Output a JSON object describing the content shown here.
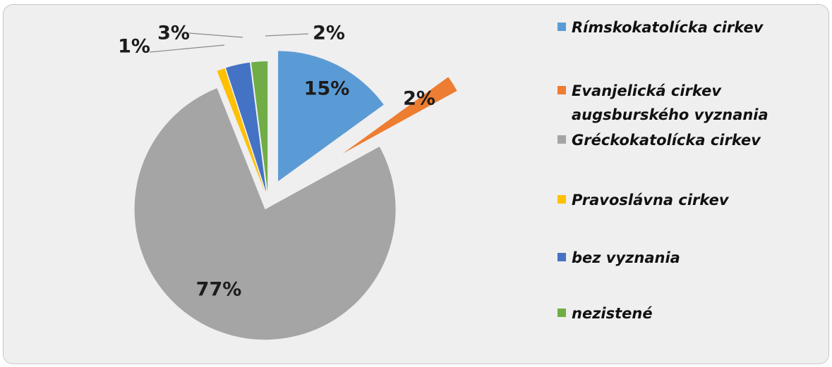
{
  "chart_data": {
    "type": "pie",
    "exploded": true,
    "legend_position": "right",
    "slices": [
      {
        "label": "Rímskokatolícka cirkev",
        "value": 15,
        "value_label": "15%",
        "color": "#5b9bd5"
      },
      {
        "label": "Evanjelická cirkev augsburského vyznania",
        "value": 2,
        "value_label": "2%",
        "color": "#ed7d31"
      },
      {
        "label": "Gréckokatolícka cirkev",
        "value": 77,
        "value_label": "77%",
        "color": "#a5a5a5"
      },
      {
        "label": "Pravoslávna cirkev",
        "value": 1,
        "value_label": "1%",
        "color": "#ffc000"
      },
      {
        "label": "bez vyznania",
        "value": 3,
        "value_label": "3%",
        "color": "#4472c4"
      },
      {
        "label": "nezistené",
        "value": 2,
        "value_label": "2%",
        "color": "#70ad47"
      }
    ]
  },
  "legend": {
    "items": [
      "Rímskokatolícka cirkev",
      "Evanjelická cirkev\naugsburského vyznania",
      "Gréckokatolícka cirkev",
      "Pravoslávna cirkev",
      "bez vyznania",
      "nezistené"
    ]
  }
}
